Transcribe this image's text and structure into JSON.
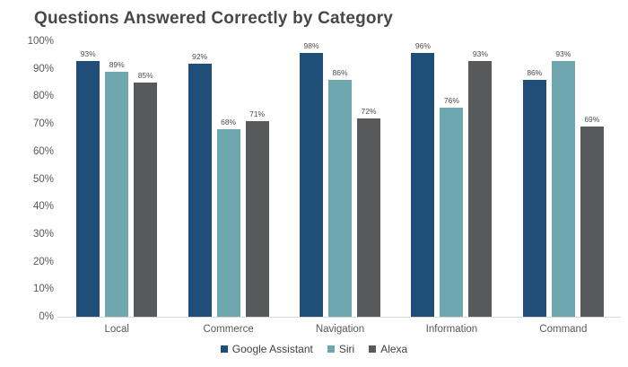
{
  "chart_data": {
    "type": "bar",
    "title": "Questions Answered Correctly by Category",
    "categories": [
      "Local",
      "Commerce",
      "Navigation",
      "Information",
      "Command"
    ],
    "series": [
      {
        "name": "Google Assistant",
        "color": "#1F4E79",
        "values": [
          93,
          92,
          98,
          96,
          86
        ]
      },
      {
        "name": "Siri",
        "color": "#6FA7AE",
        "values": [
          89,
          68,
          86,
          76,
          93
        ]
      },
      {
        "name": "Alexa",
        "color": "#58595B",
        "values": [
          85,
          71,
          72,
          93,
          69
        ]
      }
    ],
    "value_suffix": "%",
    "ylim": [
      0,
      100
    ],
    "yticks": [
      "0%",
      "10%",
      "20%",
      "30%",
      "40%",
      "50%",
      "60%",
      "70%",
      "80%",
      "90%",
      "100%"
    ],
    "xlabel": "",
    "ylabel": "",
    "grid": false,
    "legend_position": "bottom",
    "colors": {
      "title_text": "#47484B",
      "axis_text": "#595959",
      "value_label_text": "#4D4D4D",
      "baseline": "#D9D9D9",
      "background": "#FFFFFF"
    }
  }
}
